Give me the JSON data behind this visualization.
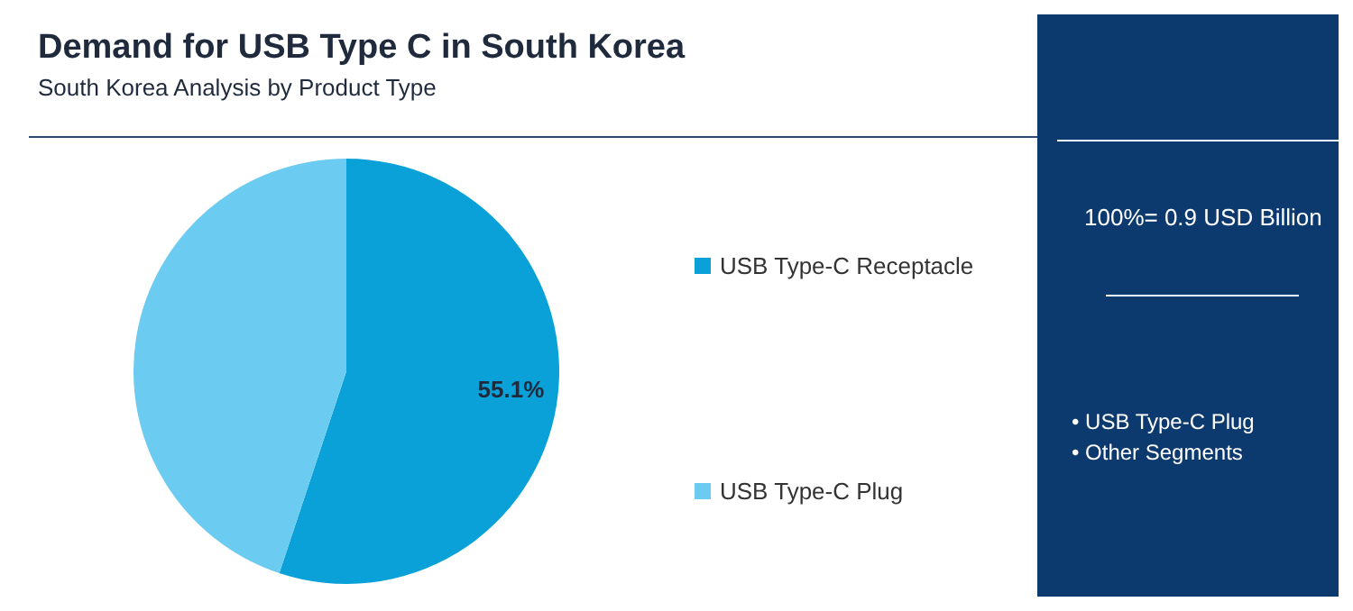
{
  "chart_data": {
    "type": "pie",
    "title": "Demand for USB Type C in South Korea",
    "subtitle": "South Korea Analysis by Product Type",
    "categories": [
      "USB Type-C Receptacle",
      "USB Type-C Plug"
    ],
    "values": [
      55.1,
      44.9
    ],
    "colors": [
      "#0aa1d9",
      "#6ccbf0"
    ],
    "value_labels": [
      "55.1%",
      null
    ],
    "legend": "right",
    "annotations": [
      "100%= 0.9 USD Billion",
      "• USB Type-C Plug",
      "• Other Segments"
    ]
  }
}
